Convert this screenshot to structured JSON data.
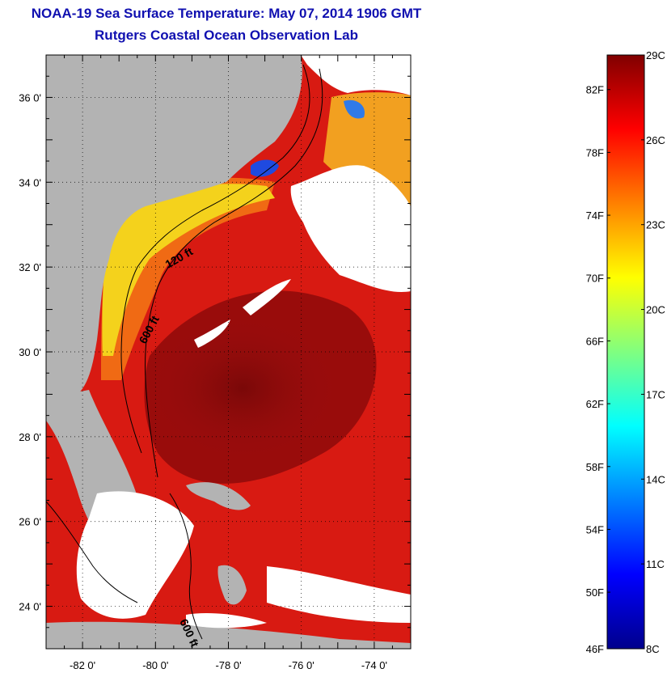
{
  "title_line1": "NOAA-19 Sea Surface Temperature:  May 07, 2014 1906 GMT",
  "title_line2": "Rutgers Coastal Ocean Observation Lab",
  "map": {
    "lon_range": [
      -83,
      -73
    ],
    "lat_range": [
      23,
      37
    ],
    "lon_ticks": [
      {
        "value": -82,
        "label": "-82 0'"
      },
      {
        "value": -80,
        "label": "-80 0'"
      },
      {
        "value": -78,
        "label": "-78 0'"
      },
      {
        "value": -76,
        "label": "-76 0'"
      },
      {
        "value": -74,
        "label": "-74 0'"
      }
    ],
    "lat_ticks": [
      {
        "value": 36,
        "label": "36 0'"
      },
      {
        "value": 34,
        "label": "34 0'"
      },
      {
        "value": 32,
        "label": "32 0'"
      },
      {
        "value": 30,
        "label": "30 0'"
      },
      {
        "value": 28,
        "label": "28 0'"
      },
      {
        "value": 26,
        "label": "26 0'"
      },
      {
        "value": 24,
        "label": "24 0'"
      }
    ],
    "contour_labels": [
      "120 ft",
      "600 ft",
      "600 ft"
    ],
    "colors": {
      "land": "#b3b3b3",
      "cloud": "#ffffff",
      "warm_core": "#8c0a0a",
      "warm": "#d81a12",
      "shelf": "#f06a14",
      "nearshore": "#f4d21c",
      "cold": "#1f4ae0"
    }
  },
  "colorbar": {
    "min_c": 8,
    "max_c": 29,
    "fahrenheit_labels": [
      "46F",
      "50F",
      "54F",
      "58F",
      "62F",
      "66F",
      "70F",
      "74F",
      "78F",
      "82F"
    ],
    "fahrenheit_values": [
      46,
      50,
      54,
      58,
      62,
      66,
      70,
      74,
      78,
      82
    ],
    "celsius_labels": [
      "8C",
      "11C",
      "14C",
      "17C",
      "20C",
      "23C",
      "26C",
      "29C"
    ],
    "celsius_values": [
      8,
      11,
      14,
      17,
      20,
      23,
      26,
      29
    ],
    "stops": [
      "#00008c",
      "#0000ff",
      "#0080ff",
      "#00ffff",
      "#80ff80",
      "#ffff00",
      "#ff8000",
      "#ff0000",
      "#800000"
    ]
  }
}
